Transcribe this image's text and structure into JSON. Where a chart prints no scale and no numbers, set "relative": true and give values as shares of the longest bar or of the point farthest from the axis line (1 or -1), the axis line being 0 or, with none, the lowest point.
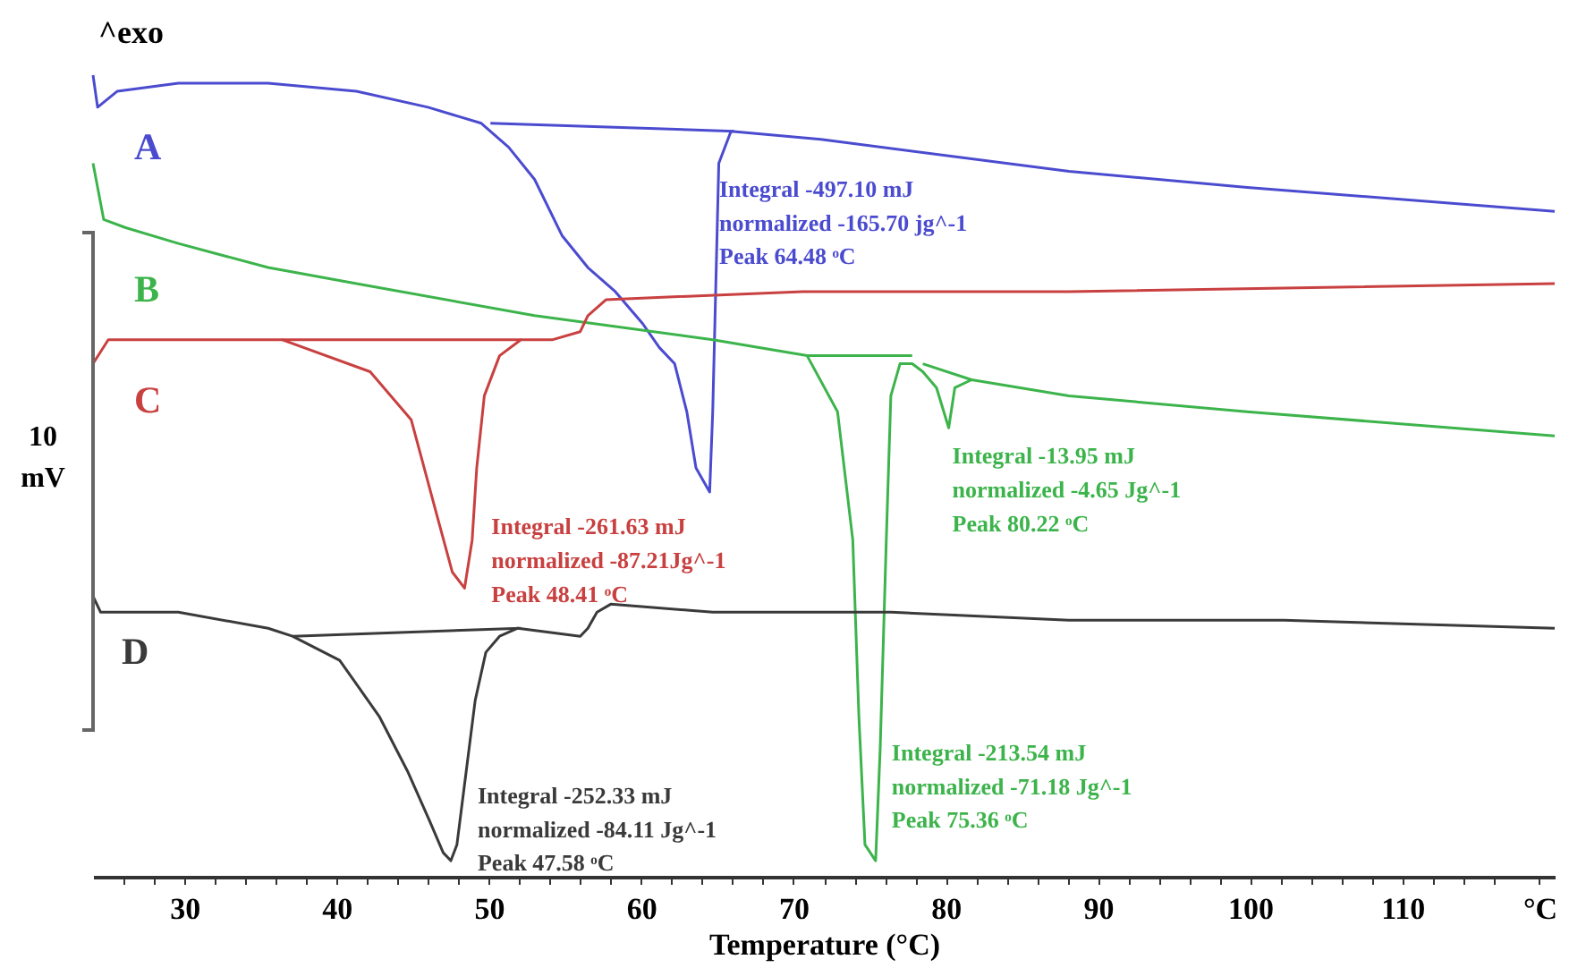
{
  "chart_data": {
    "type": "line",
    "relative": true,
    "xlabel": "Temperature (°C)",
    "xlim": [
      24,
      120
    ],
    "xticks": [
      {
        "value": 26,
        "label": null
      },
      {
        "value": 28,
        "label": null
      },
      30,
      {
        "value": 32,
        "label": null
      },
      {
        "value": 34,
        "label": null
      },
      {
        "value": 36,
        "label": null
      },
      {
        "value": 38,
        "label": null
      },
      40,
      {
        "value": 42,
        "label": null
      },
      {
        "value": 44,
        "label": null
      },
      {
        "value": 46,
        "label": null
      },
      {
        "value": 48,
        "label": null
      },
      50,
      {
        "value": 52,
        "label": null
      },
      {
        "value": 54,
        "label": null
      },
      {
        "value": 56,
        "label": null
      },
      {
        "value": 58,
        "label": null
      },
      60,
      {
        "value": 62,
        "label": null
      },
      {
        "value": 64,
        "label": null
      },
      {
        "value": 66,
        "label": null
      },
      {
        "value": 68,
        "label": null
      },
      70,
      {
        "value": 72,
        "label": null
      },
      {
        "value": 74,
        "label": null
      },
      {
        "value": 76,
        "label": null
      },
      {
        "value": 78,
        "label": null
      },
      80,
      {
        "value": 82,
        "label": null
      },
      {
        "value": 84,
        "label": null
      },
      {
        "value": 86,
        "label": null
      },
      {
        "value": 88,
        "label": null
      },
      90,
      {
        "value": 92,
        "label": null
      },
      {
        "value": 94,
        "label": null
      },
      {
        "value": 96,
        "label": null
      },
      {
        "value": 98,
        "label": null
      },
      100,
      {
        "value": 102,
        "label": null
      },
      {
        "value": 104,
        "label": null
      },
      {
        "value": 106,
        "label": null
      },
      {
        "value": 108,
        "label": null
      },
      110,
      {
        "value": 112,
        "label": null
      },
      {
        "value": 114,
        "label": null
      },
      {
        "value": 116,
        "label": null
      },
      {
        "value": 119,
        "label": "°C"
      }
    ],
    "line_style": "solid",
    "series": [
      {
        "name": "A",
        "color": "#4b4bd0",
        "x": [
          24.0,
          24.3,
          25.6,
          29.6,
          35.5,
          41.3,
          46.0,
          49.5,
          51.3,
          53.0,
          54.8,
          56.5,
          58.3,
          60.1,
          61.2,
          62.2,
          63.0,
          63.6,
          64.5,
          64.7,
          65.1,
          65.9,
          71.8,
          88.1,
          99.8,
          120.0
        ],
        "values": [
          1.0,
          0.96,
          0.98,
          0.99,
          0.99,
          0.98,
          0.96,
          0.94,
          0.91,
          0.87,
          0.8,
          0.76,
          0.73,
          0.69,
          0.66,
          0.64,
          0.58,
          0.51,
          0.48,
          0.58,
          0.89,
          0.93,
          0.92,
          0.88,
          0.86,
          0.83
        ]
      },
      {
        "name": "B",
        "color": "#3cb44b",
        "x": [
          24.0,
          24.7,
          26.1,
          29.6,
          35.5,
          41.3,
          53.0,
          64.7,
          70.9,
          72.9,
          73.9,
          74.3,
          74.7,
          75.4,
          75.7,
          76.1,
          76.4,
          77.0,
          77.8,
          78.5,
          79.4,
          80.2,
          80.6,
          81.7,
          88.1,
          99.8,
          120.0
        ],
        "values": [
          0.89,
          0.82,
          0.81,
          0.79,
          0.76,
          0.74,
          0.7,
          0.67,
          0.65,
          0.58,
          0.42,
          0.2,
          0.04,
          0.02,
          0.16,
          0.42,
          0.6,
          0.64,
          0.64,
          0.63,
          0.61,
          0.56,
          0.61,
          0.62,
          0.6,
          0.58,
          0.55
        ]
      },
      {
        "name": "C",
        "color": "#c94040",
        "x": [
          24.0,
          25.0,
          29.6,
          36.4,
          42.2,
          44.9,
          46.6,
          47.6,
          48.4,
          48.9,
          49.2,
          49.7,
          50.7,
          52.1,
          54.2,
          56.0,
          56.5,
          57.7,
          70.6,
          88.1,
          120.0
        ],
        "values": [
          0.64,
          0.67,
          0.67,
          0.67,
          0.63,
          0.57,
          0.45,
          0.38,
          0.36,
          0.42,
          0.51,
          0.6,
          0.65,
          0.67,
          0.67,
          0.68,
          0.7,
          0.72,
          0.73,
          0.73,
          0.74
        ]
      },
      {
        "name": "D",
        "color": "#3a3a3a",
        "x": [
          24.0,
          24.5,
          29.6,
          35.5,
          37.1,
          40.2,
          42.8,
          44.7,
          46.1,
          47.0,
          47.5,
          47.9,
          48.5,
          49.1,
          49.8,
          50.7,
          51.9,
          56.0,
          56.5,
          57.1,
          58.0,
          64.7,
          76.4,
          88.1,
          102.2,
          120.0
        ],
        "values": [
          0.35,
          0.33,
          0.33,
          0.31,
          0.3,
          0.27,
          0.2,
          0.13,
          0.07,
          0.03,
          0.02,
          0.04,
          0.13,
          0.22,
          0.28,
          0.3,
          0.31,
          0.3,
          0.31,
          0.33,
          0.34,
          0.33,
          0.33,
          0.32,
          0.32,
          0.31
        ]
      },
      {
        "color": "#4b4bd0",
        "x": [
          50.1,
          66.1
        ],
        "values": [
          0.94,
          0.93
        ]
      },
      {
        "color": "#3cb44b",
        "x": [
          70.9,
          77.8
        ],
        "values": [
          0.65,
          0.65
        ]
      },
      {
        "color": "#3cb44b",
        "x": [
          78.5,
          81.7
        ],
        "values": [
          0.64,
          0.62
        ]
      },
      {
        "color": "#c94040",
        "x": [
          36.4,
          52.1
        ],
        "values": [
          0.67,
          0.67
        ]
      },
      {
        "color": "#3a3a3a",
        "x": [
          37.1,
          52.1
        ],
        "values": [
          0.3,
          0.31
        ]
      }
    ],
    "annotations": [
      "^exo",
      "10\nmV",
      "Integral -497.10 mJ\nnormalized -165.70 jg^-1\nPeak 64.48 ᵒC",
      {
        "text": "Integral -261.63 mJ\nnormalized -87.21Jg^-1\nPeak 48.41 ᵒC",
        "x": 48.4,
        "y": 0.36
      },
      {
        "text": "Integral -13.95 mJ\nnormalized -4.65 Jg^-1\nPeak 80.22 ᵒC",
        "x": 80.2,
        "y": 0.56
      },
      {
        "text": "Integral -213.54 mJ\nnormalized -71.18 Jg^-1\nPeak 75.36 ᵒC",
        "x": 75.4,
        "y": 0.02
      },
      {
        "text": "Integral -252.33 mJ\nnormalized -84.11 Jg^-1\nPeak 47.58 ᵒC",
        "x": 47.5,
        "y": 0.02
      }
    ]
  }
}
